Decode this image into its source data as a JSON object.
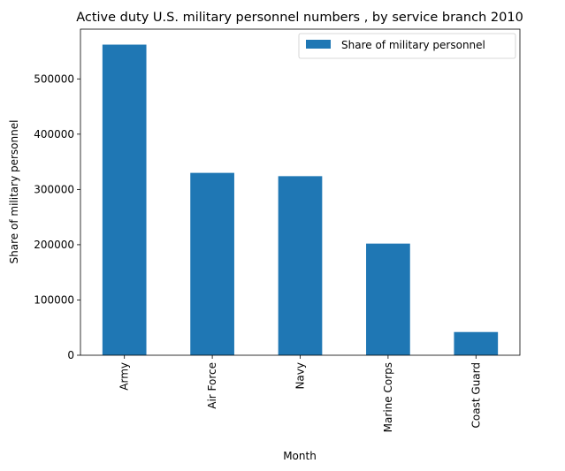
{
  "chart_data": {
    "type": "bar",
    "title": "Active duty U.S. military personnel numbers , by service branch 2010",
    "xlabel": "Month",
    "ylabel": "Share of military personnel",
    "categories": [
      "Army",
      "Air Force",
      "Navy",
      "Marine Corps",
      "Coast Guard"
    ],
    "series": [
      {
        "name": "Share of military personnel",
        "values": [
          562000,
          330000,
          324000,
          202000,
          42000
        ],
        "color": "#1f77b4"
      }
    ],
    "ylim": [
      0,
      590000
    ],
    "yticks": [
      0,
      100000,
      200000,
      300000,
      400000,
      500000
    ],
    "grid": false,
    "legend": {
      "position": "top-right"
    }
  }
}
